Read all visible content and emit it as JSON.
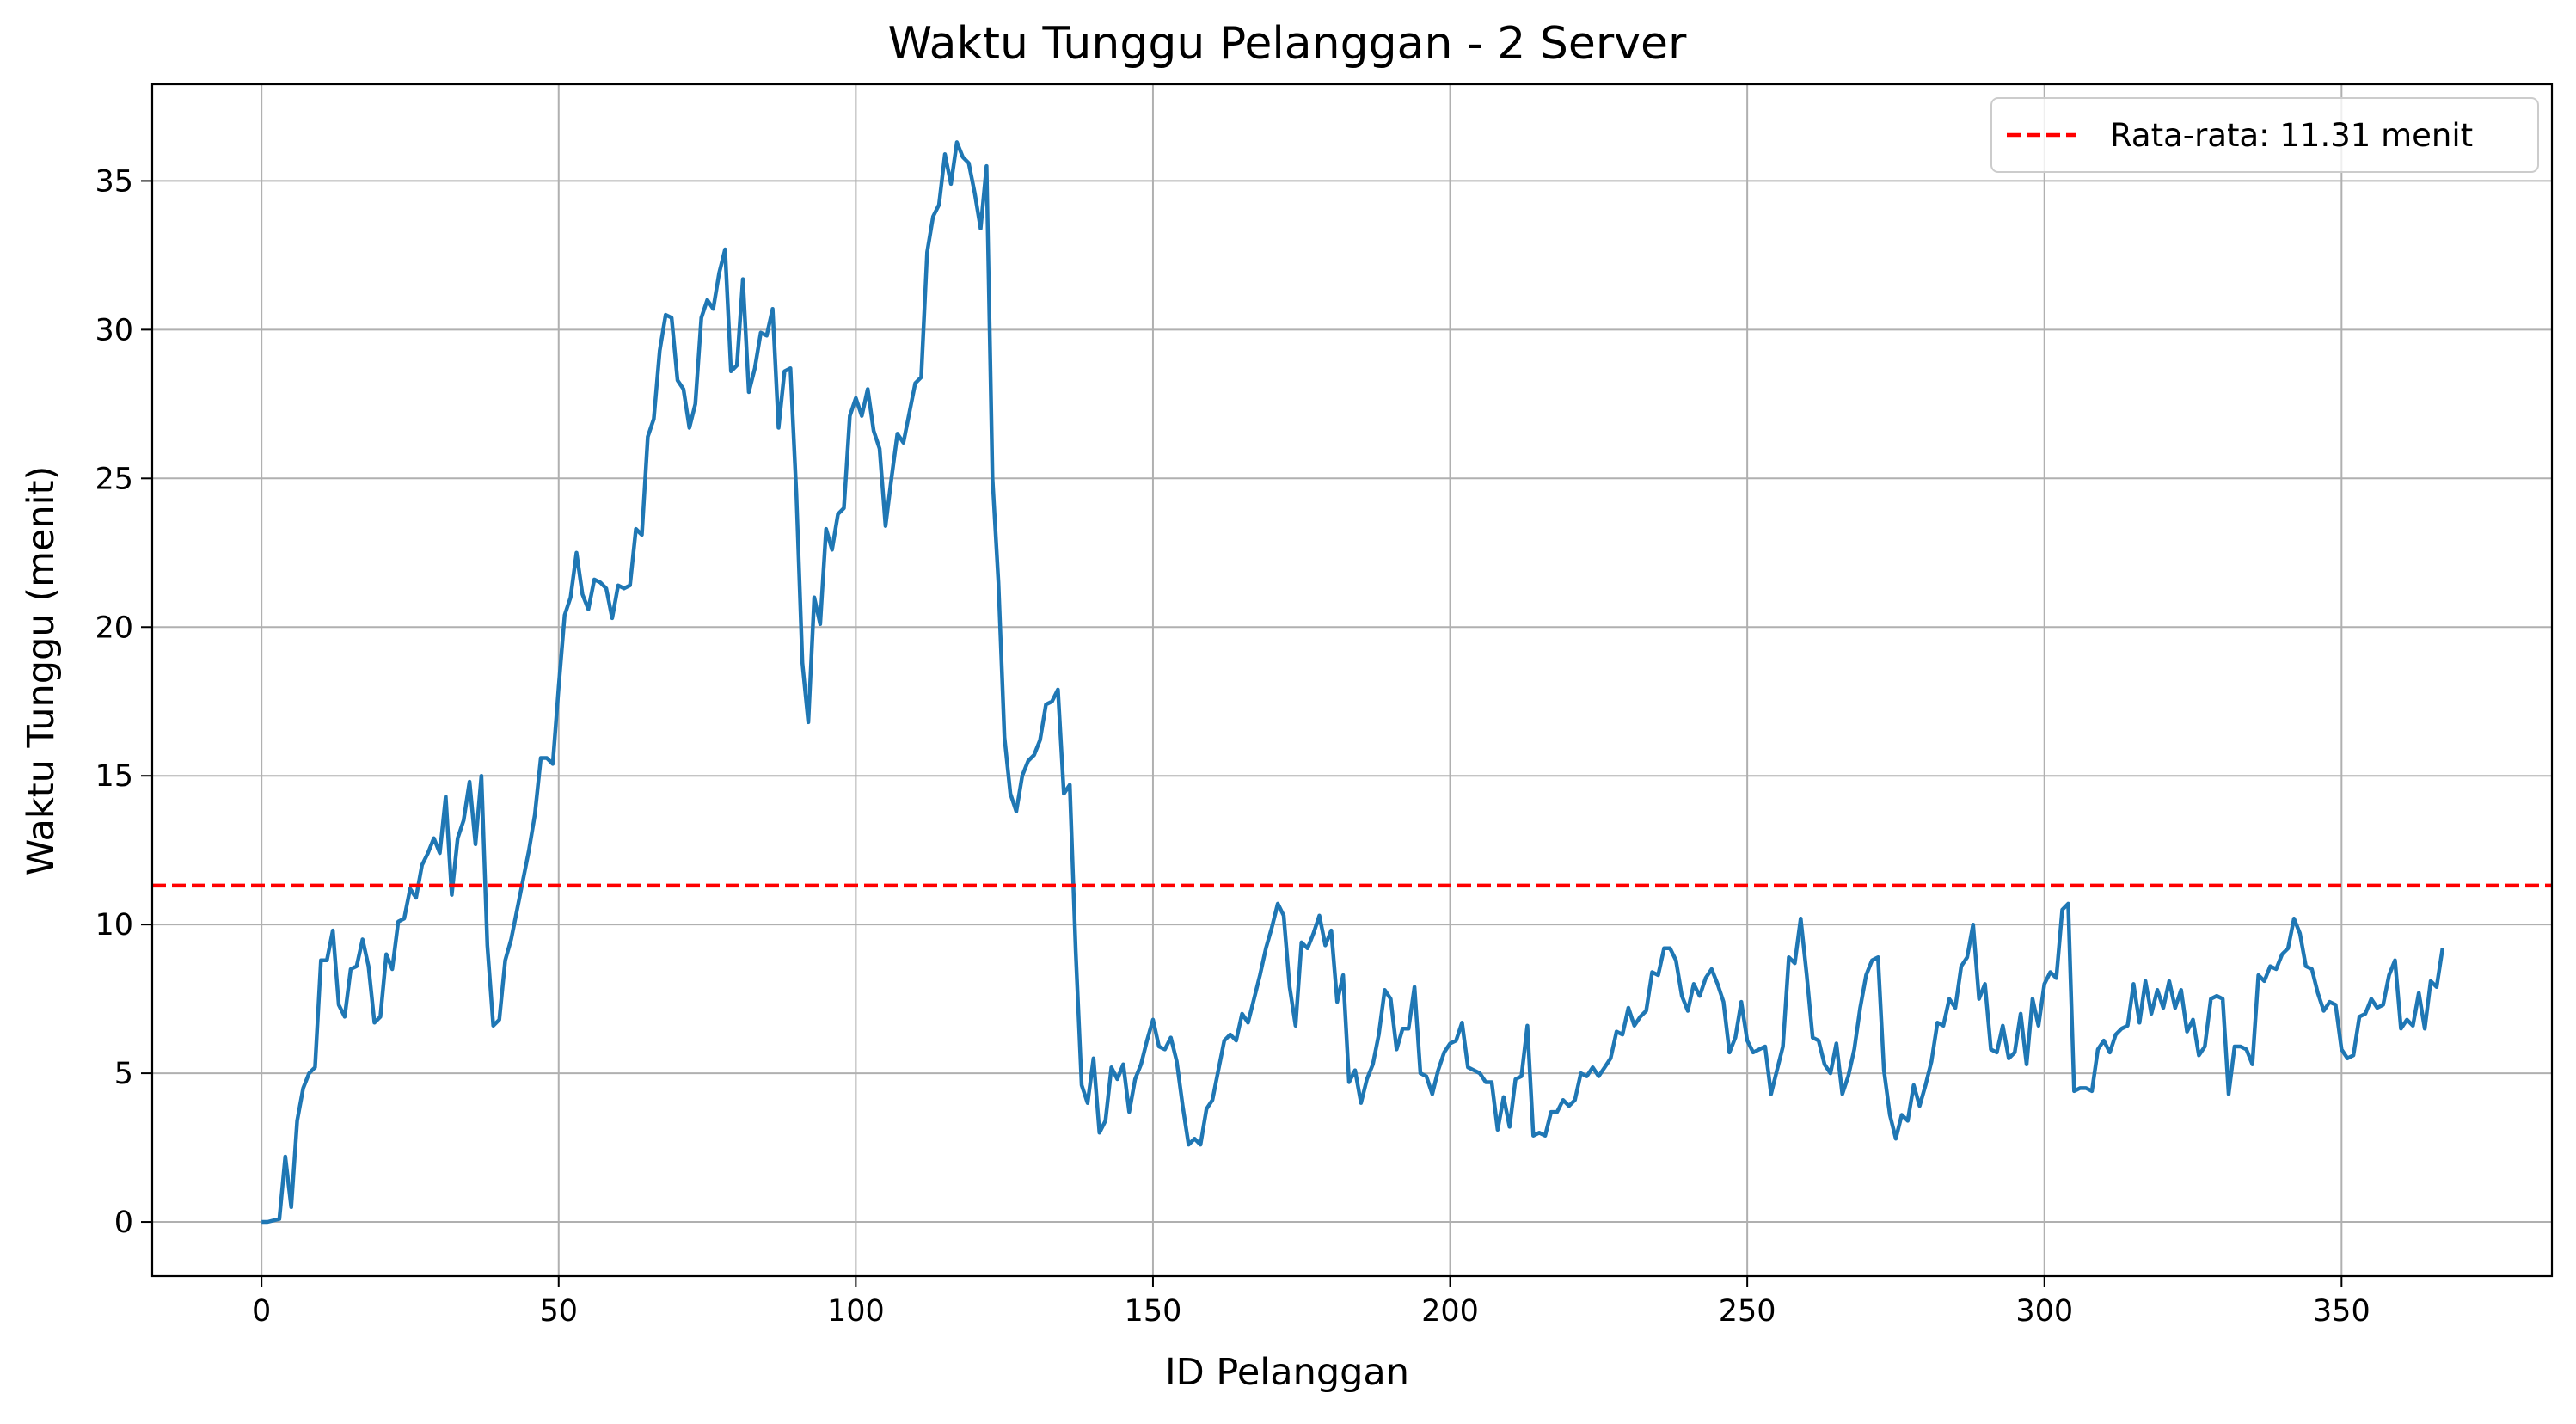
{
  "chart_data": {
    "type": "line",
    "title": "Waktu Tunggu Pelanggan - 2 Server",
    "xlabel": "ID Pelanggan",
    "ylabel": "Waktu Tunggu (menit)",
    "xlim": [
      -18.4,
      385.4
    ],
    "ylim": [
      -1.82,
      38.25
    ],
    "xticks": [
      0,
      50,
      100,
      150,
      200,
      250,
      300,
      350
    ],
    "yticks": [
      0,
      5,
      10,
      15,
      20,
      25,
      30,
      35
    ],
    "grid": true,
    "legend_position": "top-right",
    "series": [
      {
        "name": "",
        "color": "#1f77b4",
        "x_start": 0,
        "x_step": 1,
        "values": [
          0,
          0,
          0.05,
          0.1,
          2.2,
          0.5,
          3.4,
          4.5,
          5.0,
          5.2,
          8.8,
          8.8,
          9.8,
          7.3,
          6.9,
          8.5,
          8.6,
          9.5,
          8.6,
          6.7,
          6.9,
          9.0,
          8.5,
          10.1,
          10.2,
          11.2,
          10.9,
          12.0,
          12.4,
          12.9,
          12.4,
          14.3,
          11.0,
          12.9,
          13.5,
          14.8,
          12.7,
          15.0,
          9.3,
          6.6,
          6.8,
          8.8,
          9.5,
          10.5,
          11.5,
          12.5,
          13.7,
          15.6,
          15.6,
          15.4,
          18.0,
          20.4,
          21.0,
          22.5,
          21.1,
          20.6,
          21.6,
          21.5,
          21.3,
          20.3,
          21.4,
          21.3,
          21.4,
          23.3,
          23.1,
          26.4,
          27.0,
          29.3,
          30.5,
          30.4,
          28.3,
          28.0,
          26.7,
          27.5,
          30.4,
          31.0,
          30.7,
          31.9,
          32.7,
          28.6,
          28.8,
          31.7,
          27.9,
          28.7,
          29.9,
          29.8,
          30.7,
          26.7,
          28.6,
          28.7,
          24.5,
          18.8,
          16.8,
          21.0,
          20.1,
          23.3,
          22.6,
          23.8,
          24.0,
          27.1,
          27.7,
          27.1,
          28.0,
          26.6,
          26.0,
          23.4,
          25.0,
          26.5,
          26.2,
          27.2,
          28.2,
          28.4,
          32.6,
          33.8,
          34.2,
          35.9,
          34.9,
          36.3,
          35.8,
          35.6,
          34.6,
          33.4,
          35.5,
          25.0,
          21.5,
          16.3,
          14.4,
          13.8,
          15.0,
          15.5,
          15.7,
          16.2,
          17.4,
          17.5,
          17.9,
          14.4,
          14.7,
          9.1,
          4.6,
          4.0,
          5.5,
          3.0,
          3.4,
          5.2,
          4.8,
          5.3,
          3.7,
          4.8,
          5.3,
          6.1,
          6.8,
          5.9,
          5.8,
          6.2,
          5.4,
          3.9,
          2.6,
          2.8,
          2.6,
          3.8,
          4.1,
          5.1,
          6.1,
          6.3,
          6.1,
          7.0,
          6.7,
          7.5,
          8.3,
          9.2,
          9.9,
          10.7,
          10.3,
          7.9,
          6.6,
          9.4,
          9.2,
          9.7,
          10.3,
          9.3,
          9.8,
          7.4,
          8.3,
          4.7,
          5.1,
          4.0,
          4.8,
          5.3,
          6.3,
          7.8,
          7.5,
          5.8,
          6.5,
          6.5,
          7.9,
          5.0,
          4.9,
          4.3,
          5.1,
          5.7,
          6.0,
          6.1,
          6.7,
          5.2,
          5.1,
          5.0,
          4.7,
          4.7,
          3.1,
          4.2,
          3.2,
          4.8,
          4.9,
          6.6,
          2.9,
          3.0,
          2.9,
          3.7,
          3.7,
          4.1,
          3.9,
          4.1,
          5.0,
          4.9,
          5.2,
          4.9,
          5.2,
          5.5,
          6.4,
          6.3,
          7.2,
          6.6,
          6.9,
          7.1,
          8.4,
          8.3,
          9.2,
          9.2,
          8.8,
          7.6,
          7.1,
          8.0,
          7.6,
          8.2,
          8.5,
          8.0,
          7.4,
          5.7,
          6.2,
          7.4,
          6.1,
          5.7,
          5.8,
          5.9,
          4.3,
          5.1,
          5.9,
          8.9,
          8.7,
          10.2,
          8.3,
          6.2,
          6.1,
          5.3,
          5.0,
          6.0,
          4.3,
          4.9,
          5.8,
          7.2,
          8.3,
          8.8,
          8.9,
          5.1,
          3.6,
          2.8,
          3.6,
          3.4,
          4.6,
          3.9,
          4.6,
          5.4,
          6.7,
          6.6,
          7.5,
          7.2,
          8.6,
          8.9,
          10.0,
          7.5,
          8.0,
          5.8,
          5.7,
          6.6,
          5.5,
          5.7,
          7.0,
          5.3,
          7.5,
          6.6,
          8.0,
          8.4,
          8.2,
          10.5,
          10.7,
          4.4,
          4.5,
          4.5,
          4.4,
          5.8,
          6.1,
          5.7,
          6.3,
          6.5,
          6.6,
          8.0,
          6.7,
          8.1,
          7.0,
          7.8,
          7.2,
          8.1,
          7.2,
          7.8,
          6.4,
          6.8,
          5.6,
          5.9,
          7.5,
          7.6,
          7.5,
          4.3,
          5.9,
          5.9,
          5.8,
          5.3,
          8.3,
          8.1,
          8.6,
          8.5,
          9.0,
          9.2,
          10.2,
          9.7,
          8.6,
          8.5,
          7.7,
          7.1,
          7.4,
          7.3,
          5.8,
          5.5,
          5.6,
          6.9,
          7.0,
          7.5,
          7.2,
          7.3,
          8.3,
          8.8,
          6.5,
          6.8,
          6.6,
          7.7,
          6.5,
          8.1,
          7.9,
          9.2
        ]
      },
      {
        "name": "Rata-rata: 11.31 menit",
        "color": "#ff0000",
        "style": "dashed",
        "y_constant": 11.31
      }
    ]
  }
}
